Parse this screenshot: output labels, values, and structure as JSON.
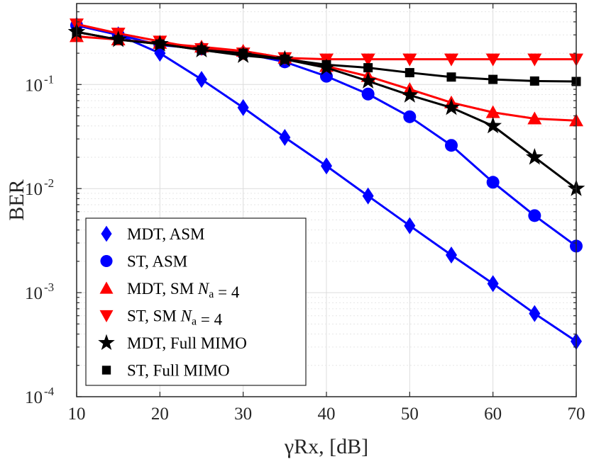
{
  "chart_data": {
    "type": "line",
    "xlabel": "γRx, [dB]",
    "ylabel": "BER",
    "x_scale": "linear",
    "y_scale": "log",
    "xlim": [
      10,
      70
    ],
    "ylim": [
      0.0001,
      0.6
    ],
    "grid": true,
    "minor_grid": true,
    "legend_position": "bottom-left",
    "x_ticks": [
      {
        "value": 10,
        "label": "10"
      },
      {
        "value": 20,
        "label": "20"
      },
      {
        "value": 30,
        "label": "30"
      },
      {
        "value": 40,
        "label": "40"
      },
      {
        "value": 50,
        "label": "50"
      },
      {
        "value": 60,
        "label": "60"
      },
      {
        "value": 70,
        "label": "70"
      }
    ],
    "y_ticks": [
      {
        "value": 0.0001,
        "base": "10",
        "exp": "-4"
      },
      {
        "value": 0.001,
        "base": "10",
        "exp": "-3"
      },
      {
        "value": 0.01,
        "base": "10",
        "exp": "-2"
      },
      {
        "value": 0.1,
        "base": "10",
        "exp": "-1"
      }
    ],
    "series": [
      {
        "name": "MDT, ASM",
        "color": "#0000ff",
        "marker": "diamond",
        "x": [
          10,
          15,
          20,
          25,
          30,
          35,
          40,
          45,
          50,
          55,
          60,
          65,
          70
        ],
        "y": [
          0.37,
          0.3,
          0.2,
          0.112,
          0.06,
          0.031,
          0.0165,
          0.0085,
          0.0044,
          0.0023,
          0.00122,
          0.00063,
          0.00034
        ]
      },
      {
        "name": "ST, ASM",
        "color": "#0000ff",
        "marker": "circle",
        "x": [
          10,
          15,
          20,
          25,
          30,
          35,
          40,
          45,
          50,
          55,
          60,
          65,
          70
        ],
        "y": [
          0.37,
          0.3,
          0.24,
          0.22,
          0.2,
          0.165,
          0.12,
          0.081,
          0.049,
          0.026,
          0.0115,
          0.0055,
          0.0028
        ]
      },
      {
        "name": "MDT, SM Na = 4",
        "color": "#ff0000",
        "marker": "triangle-up",
        "x": [
          10,
          15,
          20,
          25,
          30,
          35,
          40,
          45,
          50,
          55,
          60,
          65,
          70
        ],
        "y": [
          0.29,
          0.27,
          0.25,
          0.23,
          0.21,
          0.18,
          0.15,
          0.12,
          0.09,
          0.067,
          0.054,
          0.047,
          0.045
        ]
      },
      {
        "name": "ST, SM Na = 4",
        "color": "#ff0000",
        "marker": "triangle-down",
        "x": [
          10,
          15,
          20,
          25,
          30,
          35,
          40,
          45,
          50,
          55,
          60,
          65,
          70
        ],
        "y": [
          0.38,
          0.31,
          0.26,
          0.22,
          0.2,
          0.18,
          0.175,
          0.175,
          0.175,
          0.175,
          0.175,
          0.175,
          0.175
        ]
      },
      {
        "name": "MDT, Full MIMO",
        "color": "#000000",
        "marker": "star",
        "x": [
          10,
          15,
          20,
          25,
          30,
          35,
          40,
          45,
          50,
          55,
          60,
          65,
          70
        ],
        "y": [
          0.32,
          0.27,
          0.245,
          0.215,
          0.19,
          0.175,
          0.145,
          0.108,
          0.079,
          0.06,
          0.04,
          0.02,
          0.01
        ]
      },
      {
        "name": "ST, Full MIMO",
        "color": "#000000",
        "marker": "square",
        "x": [
          10,
          15,
          20,
          25,
          30,
          35,
          40,
          45,
          50,
          55,
          60,
          65,
          70
        ],
        "y": [
          0.32,
          0.27,
          0.245,
          0.215,
          0.2,
          0.175,
          0.155,
          0.145,
          0.13,
          0.118,
          0.112,
          0.108,
          0.107
        ]
      }
    ],
    "legend": [
      {
        "series": 0,
        "parts": [
          {
            "t": "MDT, ASM"
          }
        ]
      },
      {
        "series": 1,
        "parts": [
          {
            "t": "ST, ASM"
          }
        ]
      },
      {
        "series": 2,
        "parts": [
          {
            "t": "MDT, SM "
          },
          {
            "t": "N",
            "style": "italic"
          },
          {
            "t": "a",
            "style": "sub"
          },
          {
            "t": " = 4"
          }
        ]
      },
      {
        "series": 3,
        "parts": [
          {
            "t": "ST, SM "
          },
          {
            "t": "N",
            "style": "italic"
          },
          {
            "t": "a",
            "style": "sub"
          },
          {
            "t": " = 4"
          }
        ]
      },
      {
        "series": 4,
        "parts": [
          {
            "t": "MDT, Full MIMO"
          }
        ]
      },
      {
        "series": 5,
        "parts": [
          {
            "t": "ST, Full MIMO"
          }
        ]
      }
    ]
  }
}
